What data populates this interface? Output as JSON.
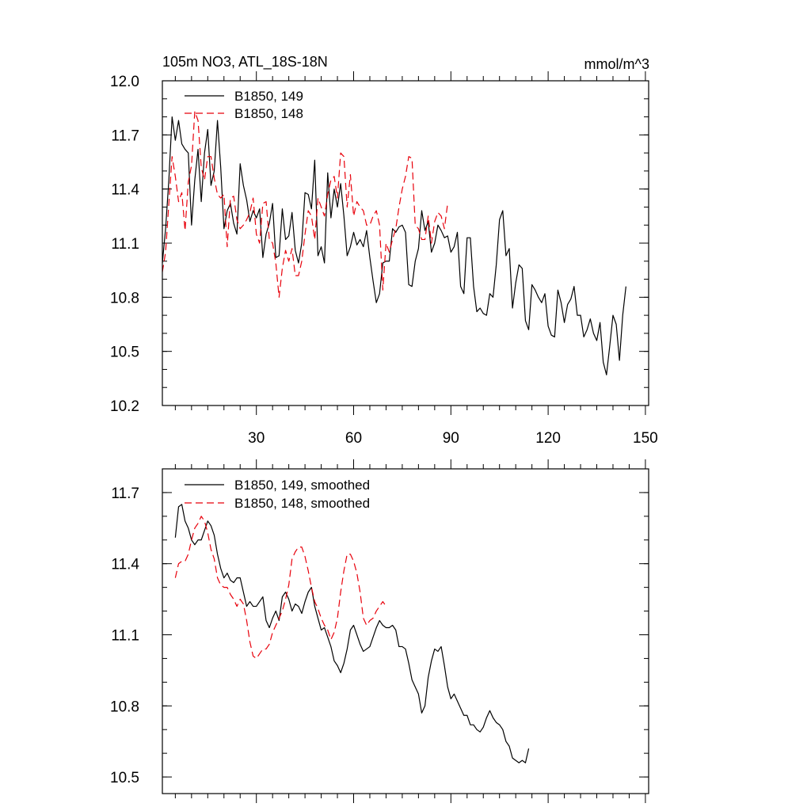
{
  "chart_data": [
    {
      "type": "line",
      "title": "105m NO3, ATL_18S-18N",
      "units": "mmol/m^3",
      "xlim": [
        1,
        151
      ],
      "ylim": [
        10.2,
        12.0
      ],
      "xticks": [
        30,
        60,
        90,
        120,
        150
      ],
      "xtick_labels": [
        "30",
        "60",
        "90",
        "120",
        "150"
      ],
      "yticks": [
        10.2,
        10.5,
        10.8,
        11.1,
        11.4,
        11.7,
        12.0
      ],
      "ytick_labels": [
        "10.2",
        "10.5",
        "10.8",
        "11.1",
        "11.4",
        "11.7",
        "12.0"
      ],
      "series": [
        {
          "name": "B1850, 149",
          "color": "#000000",
          "dash": "solid",
          "x_start": 1,
          "values": [
            10.99,
            11.18,
            11.45,
            11.8,
            11.67,
            11.78,
            11.65,
            11.62,
            11.6,
            11.2,
            11.45,
            11.62,
            11.33,
            11.6,
            11.73,
            11.42,
            11.5,
            11.78,
            11.52,
            11.18,
            11.28,
            11.32,
            11.21,
            11.15,
            11.54,
            11.42,
            11.34,
            11.22,
            11.28,
            11.24,
            11.29,
            11.02,
            11.15,
            11.21,
            11.32,
            11.02,
            11.03,
            11.29,
            11.12,
            11.14,
            11.27,
            11.06,
            10.99,
            11.1,
            11.38,
            11.37,
            11.29,
            11.56,
            11.03,
            11.08,
            10.99,
            11.49,
            11.24,
            11.4,
            11.3,
            11.43,
            11.25,
            11.03,
            11.08,
            11.16,
            11.09,
            11.12,
            11.08,
            11.17,
            11.02,
            10.89,
            10.77,
            10.82,
            10.99,
            11.0,
            11.0,
            11.18,
            11.16,
            11.19,
            11.2,
            11.16,
            10.87,
            10.86,
            11.0,
            11.07,
            11.28,
            11.17,
            11.22,
            11.05,
            11.1,
            11.2,
            11.17,
            11.13,
            11.14,
            11.05,
            11.08,
            11.16,
            10.86,
            10.82,
            11.13,
            11.13,
            10.86,
            10.72,
            10.74,
            10.71,
            10.7,
            10.82,
            10.8,
            10.98,
            11.23,
            11.28,
            11.03,
            11.07,
            10.74,
            10.88,
            10.98,
            10.96,
            10.67,
            10.62,
            10.87,
            10.84,
            10.8,
            10.77,
            10.82,
            10.64,
            10.59,
            10.58,
            10.84,
            10.77,
            10.66,
            10.76,
            10.79,
            10.86,
            10.7,
            10.7,
            10.58,
            10.62,
            10.68,
            10.6,
            10.56,
            10.66,
            10.44,
            10.37,
            10.53,
            10.7,
            10.65,
            10.45,
            10.7,
            10.86
          ]
        },
        {
          "name": "B1850, 148",
          "color": "#e8000b",
          "dash": "dashed",
          "x_start": 1,
          "values": [
            10.94,
            11.05,
            11.32,
            11.58,
            11.47,
            11.33,
            11.38,
            11.17,
            11.44,
            11.53,
            11.83,
            11.78,
            11.52,
            11.45,
            11.58,
            11.58,
            11.46,
            11.37,
            11.35,
            11.37,
            11.08,
            11.35,
            11.36,
            11.23,
            11.18,
            11.2,
            11.23,
            11.27,
            11.35,
            11.15,
            11.1,
            11.32,
            11.33,
            11.12,
            11.1,
            10.99,
            10.8,
            10.96,
            11.06,
            11.0,
            11.07,
            10.92,
            10.92,
            11.0,
            11.15,
            11.28,
            11.25,
            11.12,
            11.35,
            11.3,
            11.25,
            11.37,
            11.45,
            11.47,
            11.35,
            11.6,
            11.58,
            11.3,
            11.48,
            11.25,
            11.33,
            11.3,
            11.28,
            11.2,
            11.2,
            11.25,
            11.28,
            11.2,
            10.84,
            11.1,
            11.05,
            11.12,
            11.18,
            11.3,
            11.4,
            11.47,
            11.58,
            11.57,
            11.2,
            11.18,
            11.12,
            11.12,
            11.25,
            11.1,
            11.22,
            11.27,
            11.25,
            11.18,
            11.32
          ]
        }
      ],
      "legend": [
        {
          "label": "B1850, 149",
          "color": "#000000",
          "dash": "solid"
        },
        {
          "label": "B1850, 148",
          "color": "#e8000b",
          "dash": "dashed"
        }
      ]
    },
    {
      "type": "line",
      "title": "",
      "xlim": [
        1,
        151
      ],
      "ylim": [
        10.43,
        11.8
      ],
      "xticks": [
        30,
        60,
        90,
        120,
        150
      ],
      "xtick_labels": [],
      "yticks": [
        10.5,
        10.8,
        11.1,
        11.4,
        11.7
      ],
      "ytick_labels": [
        "10.5",
        "10.8",
        "11.1",
        "11.4",
        "11.7"
      ],
      "series": [
        {
          "name": "B1850, 149, smoothed",
          "color": "#000000",
          "dash": "solid",
          "x_start": 5,
          "values": [
            11.51,
            11.64,
            11.65,
            11.58,
            11.55,
            11.5,
            11.48,
            11.5,
            11.5,
            11.54,
            11.58,
            11.56,
            11.52,
            11.44,
            11.38,
            11.34,
            11.36,
            11.33,
            11.32,
            11.34,
            11.34,
            11.28,
            11.22,
            11.24,
            11.22,
            11.22,
            11.24,
            11.26,
            11.16,
            11.13,
            11.17,
            11.2,
            11.16,
            11.26,
            11.28,
            11.25,
            11.2,
            11.23,
            11.22,
            11.19,
            11.24,
            11.28,
            11.3,
            11.22,
            11.17,
            11.12,
            11.13,
            11.09,
            11.05,
            10.99,
            10.97,
            10.94,
            10.98,
            11.04,
            11.12,
            11.14,
            11.1,
            11.06,
            11.03,
            11.04,
            11.05,
            11.09,
            11.13,
            11.16,
            11.14,
            11.13,
            11.13,
            11.14,
            11.12,
            11.05,
            11.05,
            11.04,
            10.98,
            10.91,
            10.88,
            10.85,
            10.77,
            10.8,
            10.92,
            10.99,
            11.04,
            11.03,
            11.05,
            10.97,
            10.88,
            10.83,
            10.85,
            10.82,
            10.79,
            10.76,
            10.76,
            10.72,
            10.72,
            10.7,
            10.69,
            10.71,
            10.75,
            10.78,
            10.75,
            10.73,
            10.72,
            10.7,
            10.65,
            10.63,
            10.58,
            10.57,
            10.56,
            10.57,
            10.56,
            10.62
          ]
        },
        {
          "name": "B1850, 148, smoothed",
          "color": "#e8000b",
          "dash": "dashed",
          "x_start": 5,
          "values": [
            11.34,
            11.4,
            11.41,
            11.41,
            11.44,
            11.5,
            11.55,
            11.57,
            11.6,
            11.58,
            11.53,
            11.46,
            11.42,
            11.34,
            11.31,
            11.3,
            11.3,
            11.27,
            11.25,
            11.22,
            11.25,
            11.23,
            11.16,
            11.07,
            11.01,
            11.0,
            11.02,
            11.04,
            11.04,
            11.06,
            11.11,
            11.14,
            11.17,
            11.2,
            11.25,
            11.31,
            11.42,
            11.45,
            11.47,
            11.47,
            11.43,
            11.37,
            11.3,
            11.24,
            11.21,
            11.17,
            11.14,
            11.12,
            11.08,
            11.11,
            11.17,
            11.28,
            11.37,
            11.44,
            11.44,
            11.41,
            11.36,
            11.28,
            11.17,
            11.14,
            11.16,
            11.17,
            11.2,
            11.22,
            11.24,
            11.22
          ]
        }
      ],
      "legend": [
        {
          "label": "B1850, 149, smoothed",
          "color": "#000000",
          "dash": "solid"
        },
        {
          "label": "B1850, 148, smoothed",
          "color": "#e8000b",
          "dash": "dashed"
        }
      ]
    }
  ]
}
